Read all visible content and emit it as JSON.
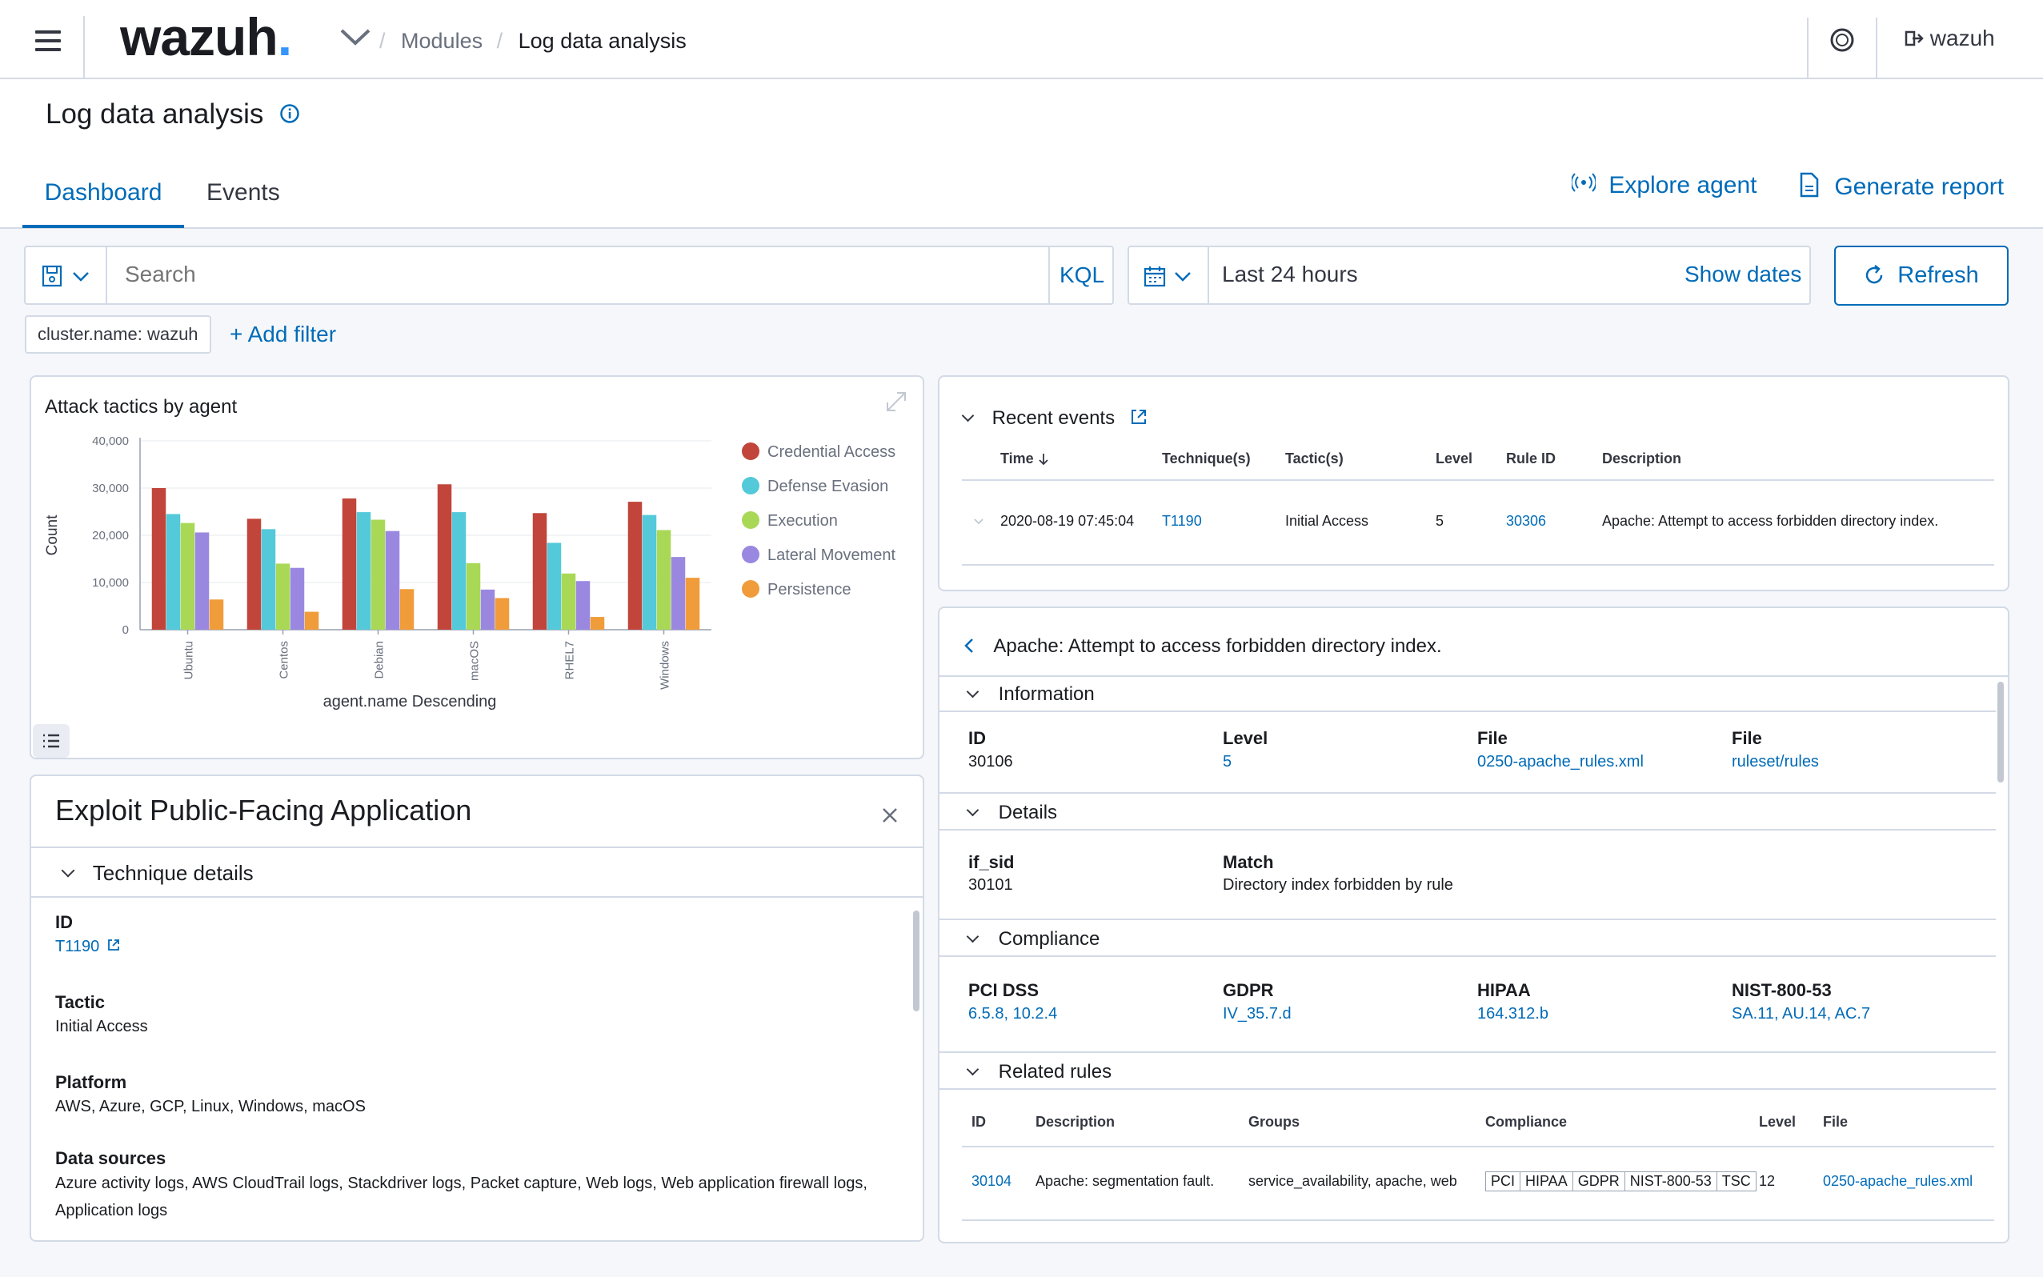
{
  "header": {
    "logo": "wazuh.",
    "breadcrumb": [
      "Modules",
      "Log data analysis"
    ],
    "user": "wazuh"
  },
  "page": {
    "title": "Log data analysis",
    "tabs": [
      "Dashboard",
      "Events"
    ],
    "active_tab": "Dashboard",
    "explore_agent": "Explore agent",
    "generate_report": "Generate report"
  },
  "search": {
    "placeholder": "Search",
    "kql": "KQL",
    "time_range": "Last 24 hours",
    "show_dates": "Show dates",
    "refresh": "Refresh",
    "filter_chip": "cluster.name: wazuh",
    "add_filter": "+ Add filter"
  },
  "colors": {
    "accent": "#006bb8",
    "series": [
      "#c1453a",
      "#54c9d9",
      "#a9d856",
      "#9a88e0",
      "#f09c3a"
    ]
  },
  "chart_data": {
    "type": "bar",
    "title": "Attack tactics by agent",
    "xlabel": "agent.name Descending",
    "ylabel": "Count",
    "ylim": [
      0,
      40000
    ],
    "yticks": [
      "0",
      "10,000",
      "20,000",
      "30,000",
      "40,000"
    ],
    "categories": [
      "Ubuntu",
      "Centos",
      "Debian",
      "macOS",
      "RHEL7",
      "Windows"
    ],
    "series": [
      {
        "name": "Credential Access",
        "values": [
          30000,
          23500,
          27800,
          30800,
          24700,
          27100
        ]
      },
      {
        "name": "Defense Evasion",
        "values": [
          24500,
          21300,
          24900,
          24900,
          18400,
          24300
        ]
      },
      {
        "name": "Execution",
        "values": [
          22600,
          14000,
          23300,
          14100,
          11900,
          21100
        ]
      },
      {
        "name": "Lateral Movement",
        "values": [
          20600,
          13100,
          20900,
          8500,
          10300,
          15400
        ]
      },
      {
        "name": "Persistence",
        "values": [
          6400,
          3800,
          8600,
          6700,
          2700,
          11000
        ]
      }
    ],
    "legend_position": "right"
  },
  "technique": {
    "title": "Exploit Public-Facing Application",
    "section": "Technique details",
    "id_label": "ID",
    "id": "T1190",
    "tactic_label": "Tactic",
    "tactic": "Initial Access",
    "platform_label": "Platform",
    "platform": "AWS, Azure, GCP, Linux, Windows, macOS",
    "data_sources_label": "Data sources",
    "data_sources_1": "Azure activity logs, AWS CloudTrail logs, Stackdriver logs, Packet capture, Web logs, Web application firewall logs,",
    "data_sources_2": "Application logs"
  },
  "recent_events": {
    "title": "Recent events",
    "columns": [
      "Time",
      "Technique(s)",
      "Tactic(s)",
      "Level",
      "Rule ID",
      "Description"
    ],
    "row": {
      "time": "2020-08-19 07:45:04",
      "technique": "T1190",
      "tactic": "Initial Access",
      "level": "5",
      "rule_id": "30306",
      "description": "Apache: Attempt to access forbidden directory index."
    }
  },
  "rule_detail": {
    "title": "Apache: Attempt to access forbidden directory index.",
    "information": {
      "title": "Information",
      "id_label": "ID",
      "id": "30106",
      "level_label": "Level",
      "level": "5",
      "file_label": "File",
      "file": "0250-apache_rules.xml",
      "path_label": "File",
      "path": "ruleset/rules"
    },
    "details": {
      "title": "Details",
      "if_sid_label": "if_sid",
      "if_sid": "30101",
      "match_label": "Match",
      "match": "Directory index forbidden by rule"
    },
    "compliance": {
      "title": "Compliance",
      "pci_label": "PCI DSS",
      "pci": "6.5.8, 10.2.4",
      "gdpr_label": "GDPR",
      "gdpr": "IV_35.7.d",
      "hipaa_label": "HIPAA",
      "hipaa": "164.312.b",
      "nist_label": "NIST-800-53",
      "nist": "SA.11, AU.14, AC.7"
    },
    "related": {
      "title": "Related rules",
      "columns": [
        "ID",
        "Description",
        "Groups",
        "Compliance",
        "Level",
        "File"
      ],
      "row": {
        "id": "30104",
        "description": "Apache: segmentation fault.",
        "groups": "service_availability, apache, web",
        "badges": [
          "PCI",
          "HIPAA",
          "GDPR",
          "NIST-800-53",
          "TSC"
        ],
        "level": "12",
        "file": "0250-apache_rules.xml"
      }
    }
  }
}
